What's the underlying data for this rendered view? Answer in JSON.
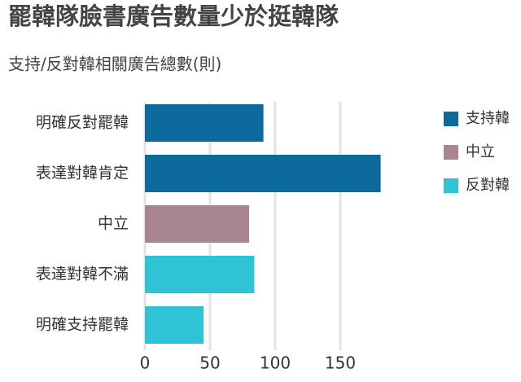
{
  "chart_data": {
    "type": "bar",
    "orientation": "horizontal",
    "title": "罷韓隊臉書廣告數量少於挺韓隊",
    "subtitle": "支持/反對韓相關廣告總數(則)",
    "categories": [
      "明確反對罷韓",
      "表達對韓肯定",
      "中立",
      "表達對韓不滿",
      "明確支持罷韓"
    ],
    "series": [
      {
        "name": "支持韓",
        "color": "#0d6a9c",
        "values": [
          91,
          181,
          null,
          null,
          null
        ]
      },
      {
        "name": "中立",
        "color": "#a8868f",
        "values": [
          null,
          null,
          80,
          null,
          null
        ]
      },
      {
        "name": "反對韓",
        "color": "#2ec4d6",
        "values": [
          null,
          null,
          null,
          84,
          45
        ]
      }
    ],
    "xlim": [
      0,
      185
    ],
    "xticks": [
      0,
      50,
      100,
      150
    ],
    "grid": true,
    "legend": "right"
  }
}
